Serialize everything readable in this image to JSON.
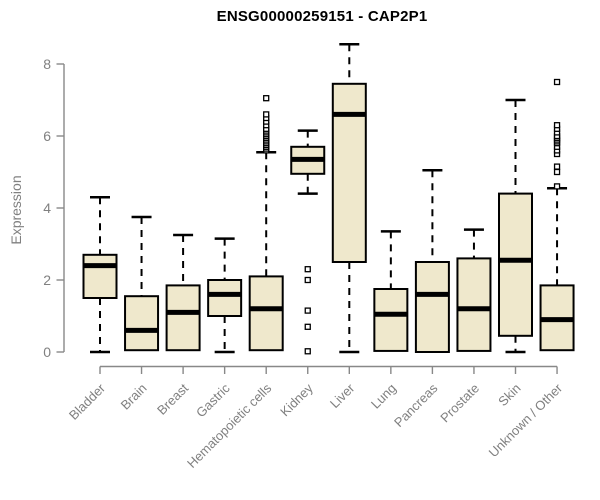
{
  "title": "ENSG00000259151 - CAP2P1",
  "chart_data": {
    "type": "boxplot",
    "title": "ENSG00000259151 - CAP2P1",
    "xlabel": "",
    "ylabel": "Expression",
    "ylim": [
      0,
      8.6
    ],
    "yticks": [
      0,
      2,
      4,
      6,
      8
    ],
    "grid": false,
    "legend": "none",
    "colors": {
      "box_fill": "#EFE8CC",
      "box_stroke": "#000000",
      "median": "#000000",
      "axis": "#888888",
      "tick_label": "#808080",
      "title": "#000000",
      "background": "#ffffff"
    },
    "categories": [
      "Bladder",
      "Brain",
      "Breast",
      "Gastric",
      "Hematopoietic cells",
      "Kidney",
      "Liver",
      "Lung",
      "Pancreas",
      "Prostate",
      "Skin",
      "Unknown / Other"
    ],
    "series": [
      {
        "name": "Bladder",
        "min": 0,
        "q1": 1.5,
        "median": 2.4,
        "q3": 2.7,
        "max": 4.3,
        "outliers": []
      },
      {
        "name": "Brain",
        "min": 0.05,
        "q1": 0.05,
        "median": 0.6,
        "q3": 1.55,
        "max": 3.75,
        "outliers": []
      },
      {
        "name": "Breast",
        "min": 0.05,
        "q1": 0.05,
        "median": 1.1,
        "q3": 1.85,
        "max": 3.25,
        "outliers": []
      },
      {
        "name": "Gastric",
        "min": 0,
        "q1": 1.0,
        "median": 1.6,
        "q3": 2.0,
        "max": 3.15,
        "outliers": []
      },
      {
        "name": "Hematopoietic cells",
        "min": 0.05,
        "q1": 0.05,
        "median": 1.2,
        "q3": 2.1,
        "max": 5.55,
        "outliers": [
          5.6,
          5.65,
          5.7,
          5.75,
          5.8,
          5.85,
          5.9,
          5.95,
          6.0,
          6.05,
          6.1,
          6.15,
          6.2,
          6.3,
          6.4,
          6.5,
          6.6,
          7.05
        ]
      },
      {
        "name": "Kidney",
        "min": 4.4,
        "q1": 4.95,
        "median": 5.35,
        "q3": 5.7,
        "max": 6.15,
        "outliers": [
          0.02,
          0.7,
          1.15,
          2.0,
          2.3
        ]
      },
      {
        "name": "Liver",
        "min": 0,
        "q1": 2.5,
        "median": 6.6,
        "q3": 7.45,
        "max": 8.55,
        "outliers": []
      },
      {
        "name": "Lung",
        "min": 0.03,
        "q1": 0.03,
        "median": 1.05,
        "q3": 1.75,
        "max": 3.35,
        "outliers": []
      },
      {
        "name": "Pancreas",
        "min": 0,
        "q1": 0,
        "median": 1.6,
        "q3": 2.5,
        "max": 5.05,
        "outliers": []
      },
      {
        "name": "Prostate",
        "min": 0.03,
        "q1": 0.03,
        "median": 1.2,
        "q3": 2.6,
        "max": 3.4,
        "outliers": []
      },
      {
        "name": "Skin",
        "min": 0,
        "q1": 0.45,
        "median": 2.55,
        "q3": 4.4,
        "max": 7.0,
        "outliers": []
      },
      {
        "name": "Unknown / Other",
        "min": 0.05,
        "q1": 0.05,
        "median": 0.9,
        "q3": 1.85,
        "max": 4.55,
        "outliers": [
          4.6,
          5.0,
          5.15,
          5.5,
          5.6,
          5.7,
          5.8,
          5.85,
          5.9,
          5.95,
          6.0,
          6.1,
          6.2,
          6.3,
          7.5
        ]
      }
    ]
  }
}
